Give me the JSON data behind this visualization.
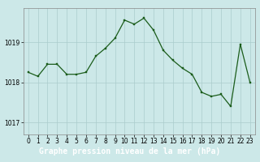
{
  "x": [
    0,
    1,
    2,
    3,
    4,
    5,
    6,
    7,
    8,
    9,
    10,
    11,
    12,
    13,
    14,
    15,
    16,
    17,
    18,
    19,
    20,
    21,
    22,
    23
  ],
  "y": [
    1018.25,
    1018.15,
    1018.45,
    1018.45,
    1018.2,
    1018.2,
    1018.25,
    1018.65,
    1018.85,
    1019.1,
    1019.55,
    1019.45,
    1019.6,
    1019.3,
    1018.8,
    1018.55,
    1018.35,
    1018.2,
    1017.75,
    1017.65,
    1017.7,
    1017.4,
    1018.95,
    1018.0
  ],
  "line_color": "#1a5c1a",
  "marker_color": "#1a5c1a",
  "bg_color": "#cce8e8",
  "grid_color": "#aacccc",
  "xlabel": "Graphe pression niveau de la mer (hPa)",
  "xlabel_bg": "#2d6e2d",
  "xlabel_color": "#ffffff",
  "yticks": [
    1017,
    1018,
    1019
  ],
  "xticks": [
    0,
    1,
    2,
    3,
    4,
    5,
    6,
    7,
    8,
    9,
    10,
    11,
    12,
    13,
    14,
    15,
    16,
    17,
    18,
    19,
    20,
    21,
    22,
    23
  ],
  "ylim": [
    1016.7,
    1019.85
  ],
  "xlim": [
    -0.5,
    23.5
  ],
  "tick_fontsize": 5.5,
  "xlabel_fontsize": 7.0
}
